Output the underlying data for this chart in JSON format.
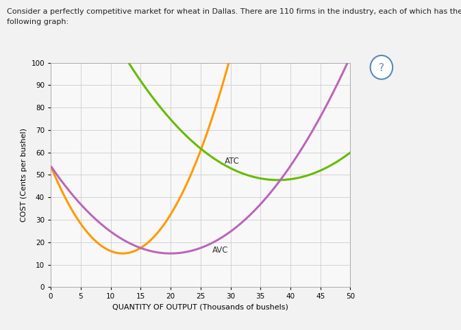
{
  "title_line1": "Consider a perfectly competitive market for wheat in Dallas. There are 110 firms in the industry, each of which has the cost curves shown on the",
  "title_line2": "following graph:",
  "ylabel": "COST (Cents per bushel)",
  "xlabel": "QUANTITY OF OUTPUT (Thousands of bushels)",
  "xlim": [
    0,
    50
  ],
  "ylim": [
    0,
    100
  ],
  "xticks": [
    0,
    5,
    10,
    15,
    20,
    25,
    30,
    35,
    40,
    45,
    50
  ],
  "yticks": [
    0,
    10,
    20,
    30,
    40,
    50,
    60,
    70,
    80,
    90,
    100
  ],
  "mc_color": "#FF9900",
  "atc_color": "#66BB00",
  "avc_color": "#BB66BB",
  "panel_bg": "#F8F8F8",
  "grid_color": "#CCCCCC",
  "border_color": "#C8B878",
  "question_mark_color": "#5588BB",
  "label_fontsize": 8.5,
  "tick_fontsize": 7.5,
  "axis_label_fontsize": 8
}
